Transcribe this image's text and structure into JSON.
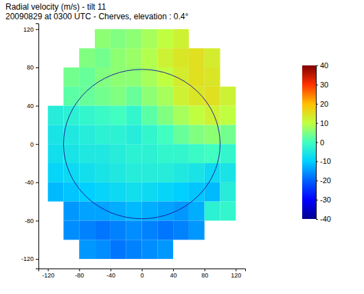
{
  "chart_data": {
    "type": "heatmap",
    "title": "Radial velocity (m/s) - tilt 11",
    "subtitle": "20090829 at 0300 UTC - Cherves, elevation : 0.4°",
    "xlim": [
      -132,
      132
    ],
    "ylim": [
      -130,
      126
    ],
    "xticks": [
      -120,
      -80,
      -40,
      0,
      40,
      80,
      120
    ],
    "yticks": [
      -120,
      -80,
      -40,
      0,
      40,
      80,
      120
    ],
    "x": [
      -110,
      -90,
      -70,
      -50,
      -30,
      -10,
      10,
      30,
      50,
      70,
      90,
      110
    ],
    "y": [
      110,
      90,
      70,
      50,
      30,
      10,
      -10,
      -30,
      -50,
      -70,
      -90,
      -110
    ],
    "cells": [
      [
        null,
        null,
        null,
        6,
        5,
        6,
        8,
        10,
        12,
        null,
        null,
        null
      ],
      [
        null,
        null,
        5,
        4,
        6,
        7,
        9,
        12,
        14,
        15,
        13,
        null
      ],
      [
        null,
        4,
        3,
        5,
        6,
        6,
        8,
        10,
        13,
        15,
        14,
        null
      ],
      [
        null,
        2,
        3,
        4,
        5,
        3,
        6,
        8,
        12,
        14,
        15,
        12
      ],
      [
        -4,
        -3,
        -2,
        -1,
        0,
        -2,
        2,
        5,
        8,
        10,
        12,
        10
      ],
      [
        -6,
        -5,
        -4,
        -3,
        -3,
        -4,
        -2,
        0,
        3,
        5,
        6,
        4
      ],
      [
        -7,
        -6,
        -5,
        -5,
        -4,
        -3,
        -3,
        -2,
        -2,
        -1,
        0,
        -2
      ],
      [
        -9,
        -8,
        -7,
        -6,
        -5,
        -4,
        -4,
        -4,
        -5,
        -6,
        -8,
        -6
      ],
      [
        -12,
        -11,
        -10,
        -9,
        -8,
        -7,
        -8,
        -9,
        -10,
        -11,
        -12,
        -4
      ],
      [
        null,
        -15,
        -14,
        -14,
        -13,
        -12,
        -13,
        -14,
        -15,
        -13,
        -3,
        -2
      ],
      [
        null,
        -16,
        -17,
        -18,
        -17,
        -16,
        -17,
        -18,
        -17,
        -15,
        null,
        null
      ],
      [
        null,
        null,
        -15,
        -16,
        -18,
        -17,
        -16,
        -15,
        null,
        null,
        null,
        null
      ]
    ],
    "ring": {
      "x_radius": 100,
      "y_radius": 78
    },
    "cbar_lim": [
      -40,
      40
    ],
    "cbar_ticks": [
      40,
      30,
      20,
      10,
      0,
      -10,
      -20,
      -30,
      -40
    ]
  }
}
